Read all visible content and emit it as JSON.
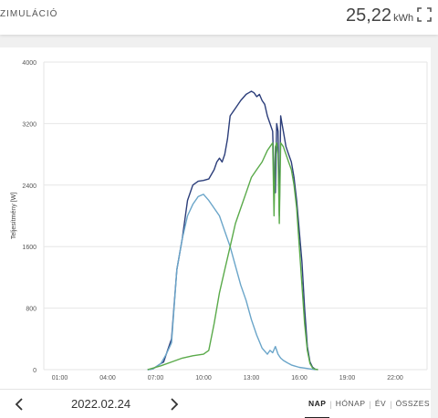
{
  "header": {
    "title": "ZIMULÁCIÓ",
    "energy_value": "25,22",
    "energy_unit": "kWh",
    "expand_icon": "fullscreen-icon"
  },
  "footer": {
    "date": "2022.02.24",
    "tabs": [
      {
        "label": "NAP",
        "active": true
      },
      {
        "label": "HÓNAP",
        "active": false
      },
      {
        "label": "ÉV",
        "active": false
      },
      {
        "label": "ÖSSZES",
        "active": false
      }
    ]
  },
  "chart_data": {
    "type": "line",
    "ylabel": "Teljesítmény [W]",
    "ylim": [
      0,
      4000
    ],
    "yticks": [
      0,
      800,
      1600,
      2400,
      3200,
      4000
    ],
    "xlim": [
      0,
      1440
    ],
    "xticks": [
      {
        "value": 60,
        "label": "01:00"
      },
      {
        "value": 240,
        "label": "04:00"
      },
      {
        "value": 420,
        "label": "07:00"
      },
      {
        "value": 600,
        "label": "10:00"
      },
      {
        "value": 780,
        "label": "13:00"
      },
      {
        "value": 960,
        "label": "16:00"
      },
      {
        "value": 1140,
        "label": "19:00"
      },
      {
        "value": 1320,
        "label": "22:00"
      }
    ],
    "grid": true,
    "series": [
      {
        "color": "#2c3e7a",
        "x": [
          390,
          410,
          440,
          450,
          460,
          470,
          480,
          500,
          520,
          540,
          560,
          580,
          600,
          620,
          640,
          650,
          660,
          670,
          680,
          690,
          700,
          720,
          740,
          760,
          770,
          780,
          790,
          800,
          810,
          820,
          830,
          840,
          850,
          860,
          865,
          870,
          875,
          880,
          885,
          890,
          895,
          900,
          910,
          920,
          930,
          940,
          950,
          960,
          970,
          980,
          990,
          1000,
          1010,
          1020,
          1030
        ],
        "y": [
          0,
          10,
          80,
          100,
          200,
          300,
          400,
          1300,
          1700,
          2200,
          2400,
          2450,
          2460,
          2480,
          2600,
          2700,
          2750,
          2700,
          2800,
          3000,
          3300,
          3400,
          3500,
          3580,
          3600,
          3620,
          3600,
          3550,
          3580,
          3500,
          3450,
          3300,
          3200,
          3100,
          2500,
          2300,
          3200,
          3100,
          2000,
          3300,
          3200,
          3100,
          2900,
          2800,
          2700,
          2500,
          2200,
          1800,
          1400,
          800,
          300,
          100,
          30,
          5,
          0
        ]
      },
      {
        "color": "#6aa5c9",
        "x": [
          390,
          410,
          440,
          460,
          480,
          500,
          520,
          540,
          560,
          580,
          600,
          620,
          640,
          660,
          680,
          700,
          720,
          740,
          760,
          780,
          800,
          820,
          840,
          850,
          860,
          870,
          880,
          890,
          900,
          910,
          920,
          930,
          940,
          960,
          980,
          1000,
          1020
        ],
        "y": [
          0,
          10,
          80,
          200,
          350,
          1300,
          1700,
          2000,
          2150,
          2250,
          2280,
          2200,
          2100,
          2000,
          1800,
          1600,
          1350,
          1100,
          900,
          650,
          450,
          280,
          200,
          250,
          220,
          300,
          200,
          150,
          120,
          100,
          80,
          60,
          50,
          30,
          20,
          10,
          0
        ]
      },
      {
        "color": "#5aaa4a",
        "x": [
          390,
          440,
          480,
          520,
          560,
          600,
          620,
          640,
          660,
          680,
          700,
          720,
          740,
          760,
          780,
          800,
          820,
          840,
          850,
          860,
          865,
          870,
          875,
          880,
          885,
          890,
          900,
          910,
          920,
          930,
          940,
          950,
          960,
          970,
          980,
          990,
          1000,
          1010,
          1020,
          1030
        ],
        "y": [
          0,
          50,
          100,
          150,
          180,
          200,
          250,
          600,
          1000,
          1300,
          1600,
          1900,
          2100,
          2300,
          2500,
          2600,
          2700,
          2850,
          2900,
          2950,
          2000,
          2900,
          2950,
          2800,
          1900,
          2950,
          2900,
          2800,
          2700,
          2600,
          2400,
          2100,
          1600,
          1100,
          600,
          250,
          80,
          20,
          5,
          0
        ]
      }
    ]
  }
}
